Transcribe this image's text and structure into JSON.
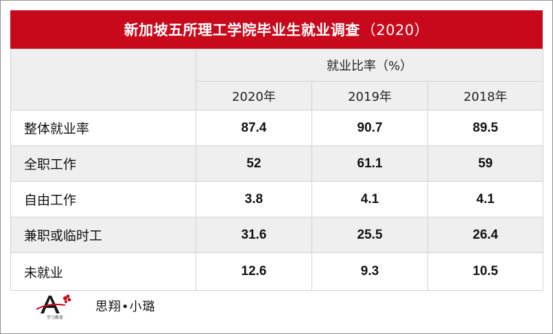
{
  "title": {
    "main": "新加坡五所理工学院毕业生就业调查",
    "year": "（2020）"
  },
  "table": {
    "group_header": "就业比率（%）",
    "year_headers": [
      "2020年",
      "2019年",
      "2018年"
    ],
    "rows": [
      {
        "label": "整体就业率",
        "values": [
          "87.4",
          "90.7",
          "89.5"
        ]
      },
      {
        "label": "全职工作",
        "values": [
          "52",
          "61.1",
          "59"
        ]
      },
      {
        "label": "自由工作",
        "values": [
          "3.8",
          "4.1",
          "4.1"
        ]
      },
      {
        "label": "兼职或临时工",
        "values": [
          "31.6",
          "25.5",
          "26.4"
        ]
      },
      {
        "label": "未就业",
        "values": [
          "12.6",
          "9.3",
          "10.5"
        ]
      }
    ]
  },
  "footer": {
    "brand": "思翔•小璐",
    "logo_text": "学习教育"
  },
  "colors": {
    "title_bg": "#c8091c",
    "title_text": "#ffffff",
    "stripe_bg": "#efefef",
    "border": "#d2d2d2"
  }
}
